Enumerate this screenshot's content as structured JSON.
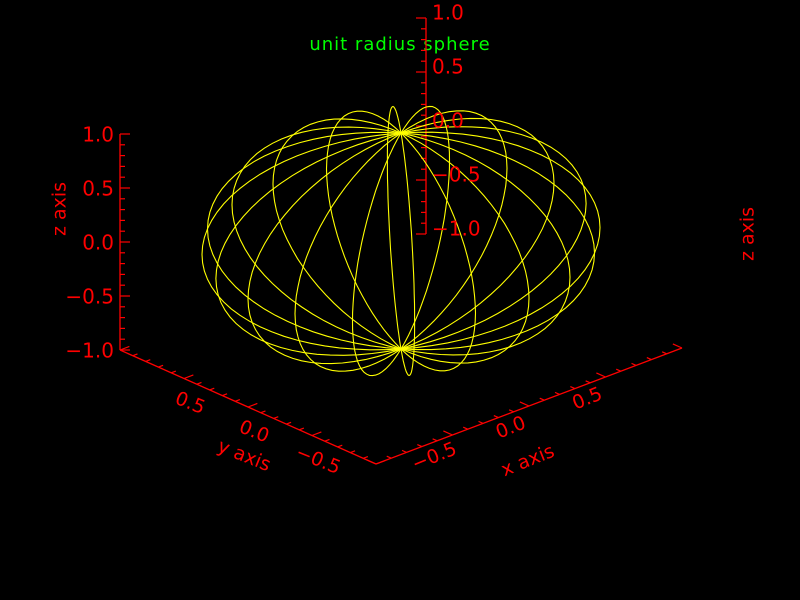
{
  "chart_data": {
    "type": "surface-3d",
    "title": "unit radius sphere",
    "xlabel": "x axis",
    "ylabel": "y axis",
    "zlabel": "z axis",
    "x_ticks": [
      "−0.5",
      "0.0",
      "0.5"
    ],
    "y_ticks": [
      "0.5",
      "0.0",
      "−0.5"
    ],
    "z_ticks": [
      "1.0",
      "0.5",
      "0.0",
      "−0.5",
      "−1.0"
    ],
    "z_ticks_right": [
      "1.0",
      "0.5",
      "0.0",
      "−0.5",
      "−1.0"
    ],
    "xlim": [
      -1,
      1
    ],
    "ylim": [
      -1,
      1
    ],
    "zlim": [
      -1,
      1
    ],
    "radius": 1,
    "meridian_count": 20,
    "colors": {
      "axes": "#ff0000",
      "title": "#00ff00",
      "surface": "#ffff00",
      "background": "#000000"
    }
  }
}
